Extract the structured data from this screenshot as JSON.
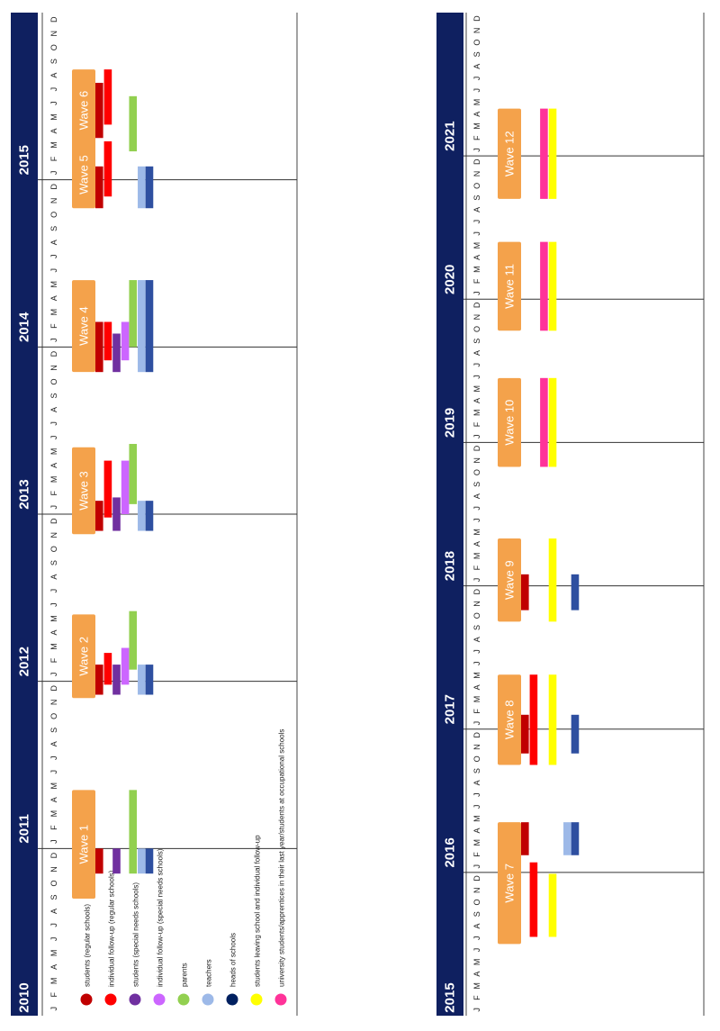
{
  "chart_data": {
    "type": "gantt",
    "orientation": "rotated-90-clockwise",
    "month_letters": [
      "J",
      "F",
      "M",
      "A",
      "M",
      "J",
      "J",
      "A",
      "S",
      "O",
      "N",
      "D"
    ],
    "panels": [
      {
        "years": [
          "2010",
          "2011",
          "2012",
          "2013",
          "2014",
          "2015"
        ],
        "year_tick_labels": [
          "2010",
          "2011",
          "2012",
          "2013",
          "2014",
          "2015"
        ]
      },
      {
        "years": [
          "2015",
          "2016",
          "2017",
          "2018",
          "2019",
          "2020",
          "2021"
        ],
        "year_tick_labels": [
          "2015",
          "2016",
          "2017",
          "2018",
          "2019",
          "2020",
          "2021"
        ]
      }
    ],
    "series": [
      {
        "key": "students_regular",
        "name": "students (regular schools)",
        "color": "#C00000"
      },
      {
        "key": "followup_regular",
        "name": "individual follow-up (regular schools)",
        "color": "#FF0000"
      },
      {
        "key": "students_special",
        "name": "students (special needs schools)",
        "color": "#7030A0"
      },
      {
        "key": "followup_special",
        "name": "individual follow-up (special needs schools)",
        "color": "#CC66FF"
      },
      {
        "key": "parents",
        "name": "parents",
        "color": "#92D050"
      },
      {
        "key": "teachers",
        "name": "teachers",
        "color": "#9DB9E8"
      },
      {
        "key": "heads",
        "name": "heads of schools",
        "color": "#002060"
      },
      {
        "key": "leaving",
        "name": "students leaving school and individual follow-up",
        "color": "#FFFF00"
      },
      {
        "key": "university",
        "name": "university students/apprentices in their last year/students at occupational schools",
        "color": "#FF3399"
      }
    ],
    "wave_box_color": "#F4A24B",
    "header_color": "#0F2060",
    "heads_bar_color": "#2E4FA0",
    "waves": [
      {
        "label": "Wave 1",
        "panel": 0,
        "box": [
          2010.7,
          2011.35
        ],
        "bars": [
          {
            "s": "students_regular",
            "from": 2010.85,
            "to": 2011.0
          },
          {
            "s": "students_special",
            "from": 2010.85,
            "to": 2011.0
          },
          {
            "s": "parents",
            "from": 2010.85,
            "to": 2011.35
          },
          {
            "s": "teachers",
            "from": 2010.85,
            "to": 2011.0
          },
          {
            "s": "heads",
            "from": 2010.85,
            "to": 2011.0
          }
        ]
      },
      {
        "label": "Wave 2",
        "panel": 0,
        "box": [
          2011.9,
          2012.4
        ],
        "bars": [
          {
            "s": "students_regular",
            "from": 2011.92,
            "to": 2012.1
          },
          {
            "s": "followup_regular",
            "from": 2011.98,
            "to": 2012.17
          },
          {
            "s": "students_special",
            "from": 2011.92,
            "to": 2012.1
          },
          {
            "s": "followup_special",
            "from": 2011.98,
            "to": 2012.2
          },
          {
            "s": "parents",
            "from": 2012.07,
            "to": 2012.42
          },
          {
            "s": "teachers",
            "from": 2011.92,
            "to": 2012.1
          },
          {
            "s": "heads",
            "from": 2011.92,
            "to": 2012.1
          }
        ]
      },
      {
        "label": "Wave 3",
        "panel": 0,
        "box": [
          2012.88,
          2013.4
        ],
        "bars": [
          {
            "s": "students_regular",
            "from": 2012.9,
            "to": 2013.08
          },
          {
            "s": "followup_regular",
            "from": 2012.98,
            "to": 2013.32
          },
          {
            "s": "students_special",
            "from": 2012.9,
            "to": 2013.1
          },
          {
            "s": "followup_special",
            "from": 2013.0,
            "to": 2013.32
          },
          {
            "s": "parents",
            "from": 2013.06,
            "to": 2013.42
          },
          {
            "s": "teachers",
            "from": 2012.9,
            "to": 2013.08
          },
          {
            "s": "heads",
            "from": 2012.9,
            "to": 2013.08
          }
        ]
      },
      {
        "label": "Wave 4",
        "panel": 0,
        "box": [
          2013.85,
          2014.4
        ],
        "bars": [
          {
            "s": "students_regular",
            "from": 2013.85,
            "to": 2014.15
          },
          {
            "s": "followup_regular",
            "from": 2013.92,
            "to": 2014.15
          },
          {
            "s": "students_special",
            "from": 2013.85,
            "to": 2014.08
          },
          {
            "s": "followup_special",
            "from": 2013.92,
            "to": 2014.15
          },
          {
            "s": "parents",
            "from": 2014.0,
            "to": 2014.4
          },
          {
            "s": "teachers",
            "from": 2013.85,
            "to": 2014.4
          },
          {
            "s": "heads",
            "from": 2013.85,
            "to": 2014.4
          }
        ]
      },
      {
        "label": "Wave 5",
        "panel": 0,
        "box": [
          2014.83,
          2015.23
        ],
        "bars": [
          {
            "s": "students_regular",
            "from": 2014.83,
            "to": 2015.08
          },
          {
            "s": "followup_regular",
            "from": 2014.9,
            "to": 2015.23
          },
          {
            "s": "teachers",
            "from": 2014.83,
            "to": 2015.08
          },
          {
            "s": "heads",
            "from": 2014.83,
            "to": 2015.08
          }
        ]
      },
      {
        "label": "Wave 6",
        "panel": 0,
        "box": [
          2015.17,
          2015.66
        ],
        "bars": [
          {
            "s": "students_regular",
            "from": 2015.25,
            "to": 2015.58
          },
          {
            "s": "followup_regular",
            "from": 2015.33,
            "to": 2015.66
          },
          {
            "s": "parents",
            "from": 2015.17,
            "to": 2015.5
          }
        ]
      },
      {
        "label": "Wave 7",
        "panel": 1,
        "box": [
          2015.5,
          2016.35
        ],
        "bars": [
          {
            "s": "students_regular",
            "from": 2016.12,
            "to": 2016.35
          },
          {
            "s": "followup_regular",
            "from": 2015.55,
            "to": 2016.07
          },
          {
            "s": "leaving",
            "from": 2015.55,
            "to": 2015.99
          },
          {
            "s": "teachers",
            "from": 2016.12,
            "to": 2016.35
          },
          {
            "s": "heads",
            "from": 2016.12,
            "to": 2016.35
          }
        ]
      },
      {
        "label": "Wave 8",
        "panel": 1,
        "box": [
          2016.75,
          2017.38
        ],
        "bars": [
          {
            "s": "students_regular",
            "from": 2016.83,
            "to": 2017.1
          },
          {
            "s": "followup_regular",
            "from": 2016.75,
            "to": 2017.38
          },
          {
            "s": "leaving",
            "from": 2016.75,
            "to": 2017.38
          },
          {
            "s": "heads",
            "from": 2016.83,
            "to": 2017.1
          }
        ]
      },
      {
        "label": "Wave 9",
        "panel": 1,
        "box": [
          2017.75,
          2018.33
        ],
        "bars": [
          {
            "s": "students_regular",
            "from": 2017.83,
            "to": 2018.08
          },
          {
            "s": "leaving",
            "from": 2017.75,
            "to": 2018.33
          },
          {
            "s": "heads",
            "from": 2017.83,
            "to": 2018.08
          }
        ]
      },
      {
        "label": "Wave 10",
        "panel": 1,
        "box": [
          2018.83,
          2019.45
        ],
        "bars": [
          {
            "s": "university",
            "from": 2018.83,
            "to": 2019.45
          },
          {
            "s": "leaving",
            "from": 2018.83,
            "to": 2019.45
          }
        ]
      },
      {
        "label": "Wave 11",
        "panel": 1,
        "box": [
          2019.78,
          2020.4
        ],
        "bars": [
          {
            "s": "university",
            "from": 2019.78,
            "to": 2020.4
          },
          {
            "s": "leaving",
            "from": 2019.78,
            "to": 2020.4
          }
        ]
      },
      {
        "label": "Wave 12",
        "panel": 1,
        "box": [
          2020.7,
          2021.33
        ],
        "bars": [
          {
            "s": "university",
            "from": 2020.7,
            "to": 2021.33
          },
          {
            "s": "leaving",
            "from": 2020.7,
            "to": 2021.33
          }
        ]
      }
    ]
  }
}
